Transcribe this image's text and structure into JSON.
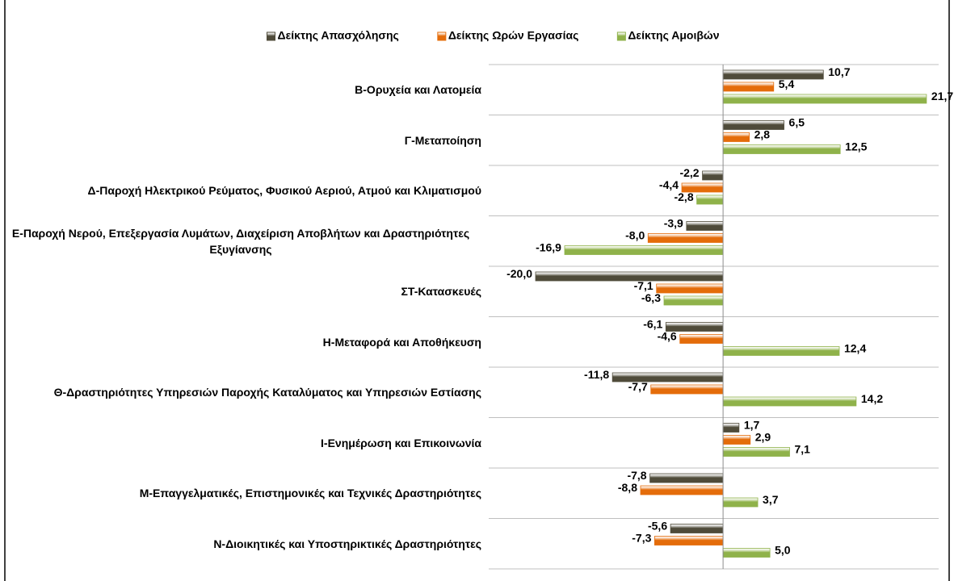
{
  "chart_data": {
    "type": "bar",
    "orientation": "horizontal",
    "categories": [
      "Β-Ορυχεία και Λατομεία",
      "Γ-Μεταποίηση",
      "Δ-Παροχή Ηλεκτρικού Ρεύματος, Φυσικού Αεριού, Ατμού και Κλιματισμού",
      "Ε-Παροχή Νερού, Επεξεργασία Λυμάτων, Διαχείριση Αποβλήτων και Δραστηριότητες Εξυγίανσης",
      "ΣΤ-Κατασκευές",
      "Η-Μεταφορά και Αποθήκευση",
      "Θ-Δραστηριότητες Υπηρεσιών Παροχής Καταλύματος και Υπηρεσιών Εστίασης",
      "Ι-Ενημέρωση και Επικοινωνία",
      "Μ-Επαγγελματικές, Επιστημονικές και Τεχνικές Δραστηριότητες",
      "Ν-Διοικητικές και Υποστηρικτικές Δραστηριότητες"
    ],
    "series": [
      {
        "name": "Δείκτης Απασχόλησης",
        "color": "#4f4b3a",
        "values": [
          10.7,
          6.5,
          -2.2,
          -3.9,
          -20.0,
          -6.1,
          -11.8,
          1.7,
          -7.8,
          -5.6
        ],
        "value_labels": [
          "10,7",
          "6,5",
          "-2,2",
          "-3,9",
          "-20,0",
          "-6,1",
          "-11,8",
          "1,7",
          "-7,8",
          "-5,6"
        ]
      },
      {
        "name": "Δείκτης Ωρών Εργασίας",
        "color": "#e46c0a",
        "values": [
          5.4,
          2.8,
          -4.4,
          -8.0,
          -7.1,
          -4.6,
          -7.7,
          2.9,
          -8.8,
          -7.3
        ],
        "value_labels": [
          "5,4",
          "2,8",
          "-4,4",
          "-8,0",
          "-7,1",
          "-4,6",
          "-7,7",
          "2,9",
          "-8,8",
          "-7,3"
        ]
      },
      {
        "name": "Δείκτης Αμοιβών",
        "color": "#8fb24a",
        "values": [
          21.7,
          12.5,
          -2.8,
          -16.9,
          -6.3,
          12.4,
          14.2,
          7.1,
          3.7,
          5.0
        ],
        "value_labels": [
          "21,7",
          "12,5",
          "-2,8",
          "-16,9",
          "-6,3",
          "12,4",
          "14,2",
          "7,1",
          "3,7",
          "5,0"
        ]
      }
    ],
    "xlim": [
      -25,
      23
    ],
    "legend": "top"
  }
}
